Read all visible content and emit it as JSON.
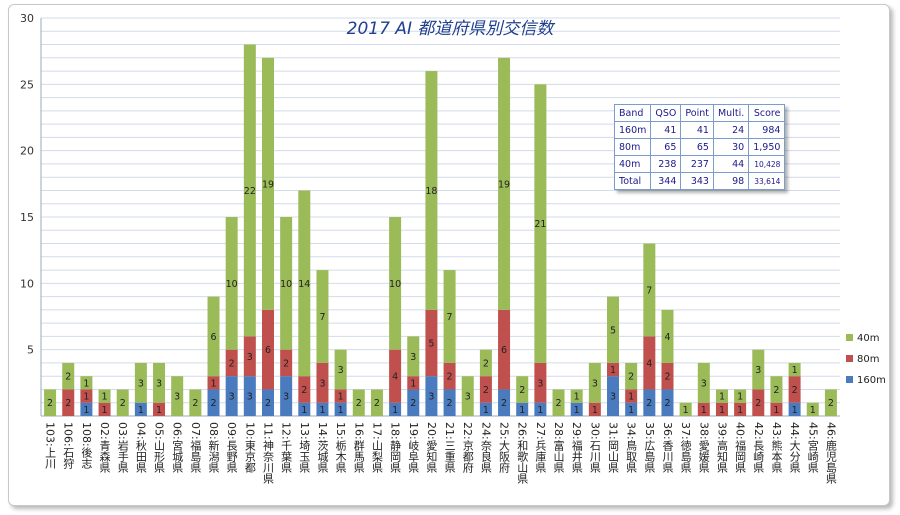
{
  "chart_data": {
    "type": "bar",
    "stacked": true,
    "title": "2017 AI 都道府県別交信数",
    "ylim": [
      0,
      30
    ],
    "yticks": [
      5,
      10,
      15,
      20,
      25,
      30
    ],
    "grid": true,
    "legend_position": "right",
    "categories": [
      "103:上川",
      "106:石狩",
      "108:後志",
      "02:青森県",
      "03:岩手県",
      "04:秋田県",
      "05:山形県",
      "06:宮城県",
      "07:福島県",
      "08:新潟県",
      "09:長野県",
      "10:東京都",
      "11:神奈川県",
      "12:千葉県",
      "13:埼玉県",
      "14:茨城県",
      "15:栃木県",
      "16:群馬県",
      "17:山梨県",
      "18:静岡県",
      "19:岐阜県",
      "20:愛知県",
      "21:三重県",
      "22:京都府",
      "24:奈良県",
      "25:大阪府",
      "26:和歌山県",
      "27:兵庫県",
      "28:富山県",
      "29:福井県",
      "30:石川県",
      "31:岡山県",
      "34:鳥取県",
      "35:広島県",
      "36:香川県",
      "37:徳島県",
      "38:愛媛県",
      "39:高知県",
      "40:福岡県",
      "42:長崎県",
      "43:熊本県",
      "44:大分県",
      "45:宮崎県",
      "46:鹿児島県"
    ],
    "series": [
      {
        "name": "160m",
        "color": "#4a7bbf",
        "values": [
          0,
          0,
          1,
          0,
          0,
          1,
          0,
          0,
          0,
          2,
          3,
          3,
          2,
          3,
          1,
          1,
          1,
          0,
          0,
          1,
          2,
          3,
          2,
          0,
          1,
          2,
          1,
          1,
          0,
          1,
          0,
          3,
          1,
          2,
          2,
          0,
          0,
          0,
          0,
          0,
          0,
          1,
          0,
          0
        ]
      },
      {
        "name": "80m",
        "color": "#c0504d",
        "values": [
          0,
          2,
          1,
          1,
          0,
          0,
          1,
          0,
          0,
          1,
          2,
          3,
          6,
          2,
          2,
          3,
          1,
          0,
          0,
          4,
          1,
          5,
          2,
          0,
          2,
          6,
          0,
          3,
          0,
          0,
          1,
          1,
          1,
          4,
          2,
          0,
          1,
          1,
          1,
          2,
          1,
          2,
          0,
          0
        ]
      },
      {
        "name": "40m",
        "color": "#9bbb59",
        "values": [
          2,
          2,
          1,
          1,
          2,
          3,
          3,
          3,
          2,
          6,
          10,
          22,
          19,
          10,
          14,
          7,
          3,
          2,
          2,
          10,
          3,
          18,
          7,
          3,
          2,
          19,
          2,
          21,
          2,
          1,
          3,
          5,
          2,
          7,
          4,
          1,
          3,
          1,
          1,
          3,
          2,
          1,
          1,
          2
        ]
      }
    ]
  },
  "score_table": {
    "headers": [
      "Band",
      "QSO",
      "Point",
      "Multi.",
      "Score"
    ],
    "rows": [
      [
        "160m",
        "41",
        "41",
        "24",
        "984"
      ],
      [
        "80m",
        "65",
        "65",
        "30",
        "1,950"
      ],
      [
        "40m",
        "238",
        "237",
        "44",
        "10,428"
      ],
      [
        "Total",
        "344",
        "343",
        "98",
        "33,614"
      ]
    ]
  }
}
